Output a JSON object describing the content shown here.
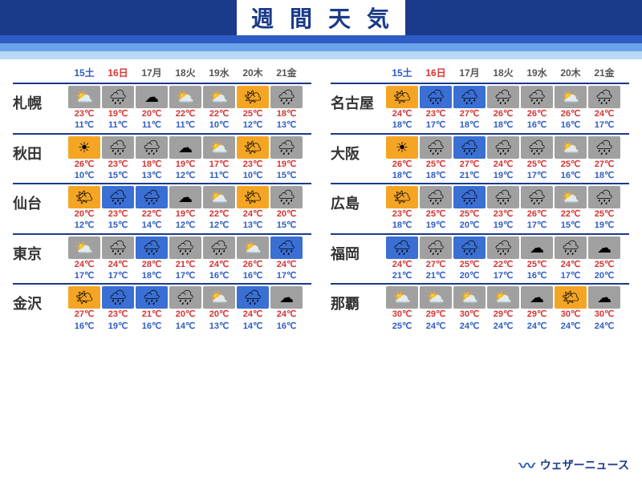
{
  "title_chars": [
    "週",
    "間",
    "天",
    "気"
  ],
  "dates": [
    {
      "num": "15",
      "dow": "土",
      "cls": "date-sat"
    },
    {
      "num": "16",
      "dow": "日",
      "cls": "date-sun"
    },
    {
      "num": "17",
      "dow": "月",
      "cls": "date-wd"
    },
    {
      "num": "18",
      "dow": "火",
      "cls": "date-wd"
    },
    {
      "num": "19",
      "dow": "水",
      "cls": "date-wd"
    },
    {
      "num": "20",
      "dow": "木",
      "cls": "date-wd"
    },
    {
      "num": "21",
      "dow": "金",
      "cls": "date-wd"
    }
  ],
  "icon_styles": {
    "sunny": {
      "bg": "#f5a524",
      "glyph": "☀"
    },
    "cloud-sun": {
      "bg": "#a0a0a0",
      "glyph": "⛅"
    },
    "cloudy": {
      "bg": "#a0a0a0",
      "glyph": "☁"
    },
    "cloud-rain": {
      "bg": "#a0a0a0",
      "glyph": "🌧"
    },
    "rain": {
      "bg": "#3a6fd4",
      "glyph": "🌧"
    },
    "rain-cloud": {
      "bg": "#3a6fd4",
      "glyph": "🌧"
    },
    "sun-cloud": {
      "bg": "#f5a524",
      "glyph": "🌤"
    }
  },
  "columns": [
    [
      {
        "city": "札幌",
        "days": [
          {
            "ic": "cloud-sun",
            "hi": 23,
            "lo": 11
          },
          {
            "ic": "cloud-rain",
            "hi": 19,
            "lo": 11
          },
          {
            "ic": "cloudy",
            "hi": 20,
            "lo": 11
          },
          {
            "ic": "cloud-sun",
            "hi": 22,
            "lo": 11
          },
          {
            "ic": "cloud-sun",
            "hi": 22,
            "lo": 10
          },
          {
            "ic": "sun-cloud",
            "hi": 25,
            "lo": 12
          },
          {
            "ic": "cloud-rain",
            "hi": 18,
            "lo": 13
          }
        ]
      },
      {
        "city": "秋田",
        "days": [
          {
            "ic": "sunny",
            "hi": 26,
            "lo": 10
          },
          {
            "ic": "cloud-rain",
            "hi": 23,
            "lo": 15
          },
          {
            "ic": "cloud-rain",
            "hi": 18,
            "lo": 13
          },
          {
            "ic": "cloudy",
            "hi": 19,
            "lo": 12
          },
          {
            "ic": "cloud-sun",
            "hi": 17,
            "lo": 11
          },
          {
            "ic": "sun-cloud",
            "hi": 23,
            "lo": 10
          },
          {
            "ic": "cloud-rain",
            "hi": 19,
            "lo": 15
          }
        ]
      },
      {
        "city": "仙台",
        "days": [
          {
            "ic": "sun-cloud",
            "hi": 20,
            "lo": 12
          },
          {
            "ic": "rain-cloud",
            "hi": 23,
            "lo": 15
          },
          {
            "ic": "rain-cloud",
            "hi": 22,
            "lo": 14
          },
          {
            "ic": "cloudy",
            "hi": 19,
            "lo": 12
          },
          {
            "ic": "cloud-sun",
            "hi": 22,
            "lo": 12
          },
          {
            "ic": "sun-cloud",
            "hi": 24,
            "lo": 13
          },
          {
            "ic": "cloud-rain",
            "hi": 20,
            "lo": 15
          }
        ]
      },
      {
        "city": "東京",
        "days": [
          {
            "ic": "cloud-sun",
            "hi": 24,
            "lo": 17
          },
          {
            "ic": "cloud-rain",
            "hi": 24,
            "lo": 17
          },
          {
            "ic": "rain-cloud",
            "hi": 28,
            "lo": 18
          },
          {
            "ic": "cloud-rain",
            "hi": 21,
            "lo": 17
          },
          {
            "ic": "cloud-rain",
            "hi": 24,
            "lo": 16
          },
          {
            "ic": "cloud-sun",
            "hi": 26,
            "lo": 16
          },
          {
            "ic": "rain-cloud",
            "hi": 24,
            "lo": 17
          }
        ]
      },
      {
        "city": "金沢",
        "days": [
          {
            "ic": "sun-cloud",
            "hi": 27,
            "lo": 16
          },
          {
            "ic": "rain-cloud",
            "hi": 23,
            "lo": 19
          },
          {
            "ic": "rain-cloud",
            "hi": 21,
            "lo": 16
          },
          {
            "ic": "cloud-rain",
            "hi": 20,
            "lo": 14
          },
          {
            "ic": "cloud-sun",
            "hi": 20,
            "lo": 13
          },
          {
            "ic": "rain-cloud",
            "hi": 24,
            "lo": 14
          },
          {
            "ic": "cloudy",
            "hi": 24,
            "lo": 16
          }
        ]
      }
    ],
    [
      {
        "city": "名古屋",
        "days": [
          {
            "ic": "sun-cloud",
            "hi": 24,
            "lo": 18
          },
          {
            "ic": "rain-cloud",
            "hi": 23,
            "lo": 17
          },
          {
            "ic": "rain-cloud",
            "hi": 27,
            "lo": 18
          },
          {
            "ic": "cloud-rain",
            "hi": 26,
            "lo": 18
          },
          {
            "ic": "cloud-rain",
            "hi": 26,
            "lo": 16
          },
          {
            "ic": "cloud-sun",
            "hi": 26,
            "lo": 16
          },
          {
            "ic": "cloud-rain",
            "hi": 24,
            "lo": 17
          }
        ]
      },
      {
        "city": "大阪",
        "days": [
          {
            "ic": "sunny",
            "hi": 26,
            "lo": 18
          },
          {
            "ic": "cloud-rain",
            "hi": 25,
            "lo": 18
          },
          {
            "ic": "rain-cloud",
            "hi": 27,
            "lo": 21
          },
          {
            "ic": "cloud-rain",
            "hi": 24,
            "lo": 19
          },
          {
            "ic": "cloud-rain",
            "hi": 25,
            "lo": 17
          },
          {
            "ic": "cloud-sun",
            "hi": 25,
            "lo": 16
          },
          {
            "ic": "cloud-rain",
            "hi": 27,
            "lo": 18
          }
        ]
      },
      {
        "city": "広島",
        "days": [
          {
            "ic": "sun-cloud",
            "hi": 23,
            "lo": 18
          },
          {
            "ic": "cloud-rain",
            "hi": 25,
            "lo": 19
          },
          {
            "ic": "rain-cloud",
            "hi": 25,
            "lo": 20
          },
          {
            "ic": "cloud-rain",
            "hi": 23,
            "lo": 19
          },
          {
            "ic": "cloud-rain",
            "hi": 26,
            "lo": 17
          },
          {
            "ic": "cloud-sun",
            "hi": 22,
            "lo": 15
          },
          {
            "ic": "cloud-rain",
            "hi": 25,
            "lo": 19
          }
        ]
      },
      {
        "city": "福岡",
        "days": [
          {
            "ic": "rain-cloud",
            "hi": 24,
            "lo": 21
          },
          {
            "ic": "cloud-rain",
            "hi": 27,
            "lo": 21
          },
          {
            "ic": "rain-cloud",
            "hi": 25,
            "lo": 20
          },
          {
            "ic": "cloud-rain",
            "hi": 22,
            "lo": 17
          },
          {
            "ic": "cloudy",
            "hi": 25,
            "lo": 16
          },
          {
            "ic": "cloud-rain",
            "hi": 24,
            "lo": 17
          },
          {
            "ic": "cloudy",
            "hi": 25,
            "lo": 20
          }
        ]
      },
      {
        "city": "那覇",
        "days": [
          {
            "ic": "cloud-sun",
            "hi": 30,
            "lo": 25
          },
          {
            "ic": "cloud-sun",
            "hi": 29,
            "lo": 24
          },
          {
            "ic": "cloud-sun",
            "hi": 30,
            "lo": 24
          },
          {
            "ic": "cloud-sun",
            "hi": 29,
            "lo": 24
          },
          {
            "ic": "cloudy",
            "hi": 29,
            "lo": 24
          },
          {
            "ic": "sun-cloud",
            "hi": 30,
            "lo": 24
          },
          {
            "ic": "cloudy",
            "hi": 30,
            "lo": 24
          }
        ]
      }
    ]
  ],
  "footer": "ウェザーニュース"
}
